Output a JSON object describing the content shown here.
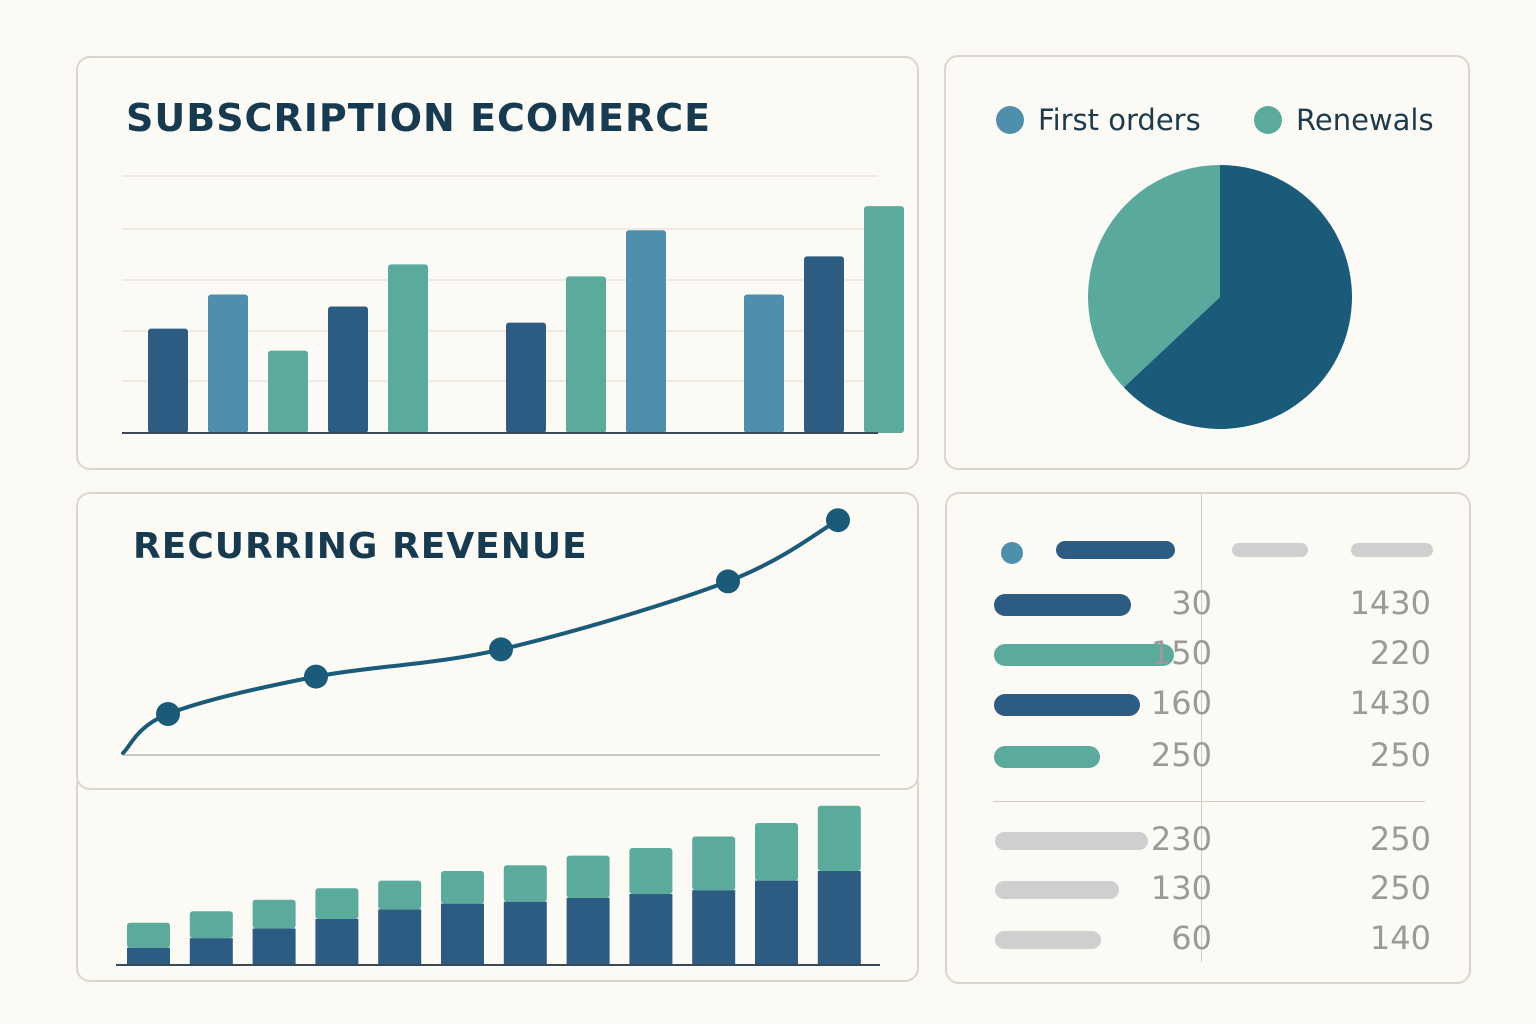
{
  "colors": {
    "dark": "#2c5c82",
    "mid": "#4e8fac",
    "teal": "#5aab9c",
    "pie_dark": "#1a5b7a",
    "pie_teal": "#5aa99d",
    "grey_pill": "#cfcfcf",
    "grid": "#dedbd4",
    "axis": "#3b4a55"
  },
  "bar_panel": {
    "title": "SUBSCRIPTION ECOMERCE",
    "chart_data": {
      "type": "bar",
      "groups": [
        {
          "values": [
            52,
            69,
            41,
            63,
            84
          ],
          "colors": [
            "dark",
            "mid",
            "teal",
            "dark",
            "teal"
          ]
        },
        {
          "values": [
            55,
            78,
            101
          ],
          "colors": [
            "dark",
            "teal",
            "mid"
          ]
        },
        {
          "values": [
            69,
            88,
            113
          ],
          "colors": [
            "mid",
            "dark",
            "teal"
          ]
        }
      ],
      "ylim": [
        0,
        128
      ],
      "grid": true
    }
  },
  "pie_panel": {
    "legend": [
      {
        "label": "First orders",
        "color": "mid"
      },
      {
        "label": "Renewals",
        "color": "teal"
      }
    ],
    "chart_data": {
      "type": "pie",
      "slices": [
        {
          "value": 0.63,
          "color": "pie_dark"
        },
        {
          "value": 0.37,
          "color": "pie_teal"
        }
      ]
    }
  },
  "line_panel": {
    "title": "RECURRING REVENUE",
    "chart_data": {
      "type": "line",
      "points": [
        {
          "x": 1,
          "y": 5
        },
        {
          "x": 2,
          "y": 16
        },
        {
          "x": 3,
          "y": 24
        },
        {
          "x": 4,
          "y": 44
        },
        {
          "x": 5,
          "y": 62
        }
      ],
      "color": "dark"
    }
  },
  "stacked_panel": {
    "chart_data": {
      "type": "bar",
      "stacked": true,
      "series": [
        {
          "color": "dark",
          "values": [
            9,
            14,
            19,
            24,
            29,
            32,
            33,
            35,
            37,
            39,
            44,
            49
          ]
        },
        {
          "color": "teal",
          "values": [
            13,
            14,
            15,
            16,
            15,
            17,
            19,
            22,
            24,
            28,
            30,
            34
          ]
        }
      ],
      "ylim": [
        0,
        86
      ]
    }
  },
  "table_panel": {
    "top_rows": [
      {
        "dot": "mid",
        "bar_color": "dark",
        "bar_fraction": 0.66,
        "c1": "",
        "c2": "",
        "header": true
      },
      {
        "bar_color": "dark",
        "bar_fraction": 0.76,
        "c1": "30",
        "c2": "1430"
      },
      {
        "bar_color": "teal",
        "bar_fraction": 1.0,
        "c1": "150",
        "c2": "220"
      },
      {
        "bar_color": "dark",
        "bar_fraction": 0.81,
        "c1": "160",
        "c2": "1430"
      },
      {
        "bar_color": "teal",
        "bar_fraction": 0.59,
        "c1": "250",
        "c2": "250"
      }
    ],
    "bottom_rows": [
      {
        "bar_fraction": 0.85,
        "c1": "230",
        "c2": "250"
      },
      {
        "bar_fraction": 0.69,
        "c1": "130",
        "c2": "250"
      },
      {
        "bar_fraction": 0.59,
        "c1": "60",
        "c2": "140"
      }
    ]
  }
}
